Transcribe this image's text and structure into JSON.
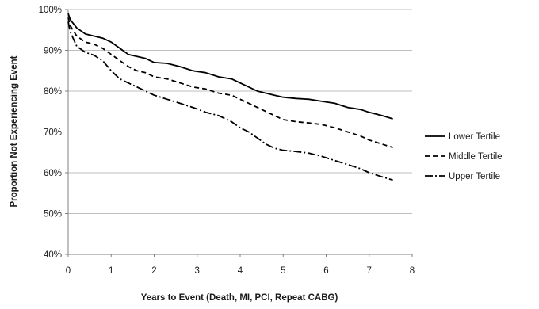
{
  "chart_data": {
    "type": "line",
    "title": "",
    "xlabel": "Years to  Event (Death, MI, PCI, Repeat CABG)",
    "ylabel": "Proportion Not Experiencing Event",
    "xlim": [
      0,
      8
    ],
    "ylim": [
      40,
      100
    ],
    "x_ticks": [
      0,
      1,
      2,
      3,
      4,
      5,
      6,
      7,
      8
    ],
    "x_tick_labels": [
      "0",
      "1",
      "2",
      "3",
      "4",
      "5",
      "6",
      "7",
      "8"
    ],
    "y_ticks": [
      40,
      50,
      60,
      70,
      80,
      90,
      100
    ],
    "y_tick_labels": [
      "40%",
      "50%",
      "60%",
      "70%",
      "80%",
      "90%",
      "100%"
    ],
    "grid": "horizontal",
    "legend_position": "right",
    "line_color": "#000000",
    "grid_color": "#bfbfbf",
    "series": [
      {
        "name": "Lower Tertile",
        "dash": "solid",
        "x": [
          0,
          0.05,
          0.2,
          0.4,
          0.6,
          0.8,
          1.0,
          1.2,
          1.4,
          1.6,
          1.8,
          2.0,
          2.3,
          2.6,
          2.9,
          3.2,
          3.5,
          3.8,
          4.0,
          4.2,
          4.4,
          4.6,
          4.8,
          5.0,
          5.3,
          5.6,
          5.9,
          6.2,
          6.5,
          6.8,
          7.0,
          7.3,
          7.55
        ],
        "y": [
          99,
          97.5,
          95.5,
          94,
          93.5,
          93,
          92,
          90.5,
          89,
          88.5,
          88,
          87,
          86.8,
          86,
          85,
          84.5,
          83.5,
          83,
          82,
          81,
          80,
          79.5,
          79,
          78.5,
          78.2,
          78,
          77.5,
          77,
          76,
          75.5,
          74.8,
          74,
          73.2
        ]
      },
      {
        "name": "Middle Tertile",
        "dash": "dashed",
        "x": [
          0,
          0.05,
          0.2,
          0.4,
          0.6,
          0.8,
          1.0,
          1.2,
          1.4,
          1.6,
          1.8,
          2.0,
          2.3,
          2.6,
          2.9,
          3.2,
          3.5,
          3.8,
          4.0,
          4.2,
          4.4,
          4.6,
          4.8,
          5.0,
          5.3,
          5.6,
          5.9,
          6.2,
          6.5,
          6.8,
          7.0,
          7.3,
          7.55
        ],
        "y": [
          98,
          96,
          93.5,
          92,
          91.5,
          90.5,
          89,
          87.5,
          86,
          85,
          84.5,
          83.5,
          83,
          82,
          81,
          80.5,
          79.5,
          79,
          78,
          77,
          76,
          75,
          74,
          73,
          72.5,
          72.2,
          71.8,
          71,
          70,
          69,
          68,
          67,
          66.2
        ]
      },
      {
        "name": "Upper Tertile",
        "dash": "dash-dot",
        "x": [
          0,
          0.05,
          0.2,
          0.4,
          0.6,
          0.8,
          1.0,
          1.2,
          1.4,
          1.6,
          1.8,
          2.0,
          2.3,
          2.6,
          2.9,
          3.2,
          3.5,
          3.8,
          4.0,
          4.2,
          4.4,
          4.6,
          4.8,
          5.0,
          5.3,
          5.6,
          5.9,
          6.2,
          6.5,
          6.8,
          7.0,
          7.3,
          7.55
        ],
        "y": [
          97,
          94.5,
          91,
          89.5,
          88.8,
          87.5,
          85,
          83,
          82,
          81,
          80,
          79,
          78,
          77,
          76,
          74.8,
          74,
          72.5,
          71,
          70,
          68.5,
          67,
          66,
          65.5,
          65.2,
          64.8,
          64,
          63,
          62,
          61,
          60,
          59,
          58.2
        ]
      }
    ]
  }
}
